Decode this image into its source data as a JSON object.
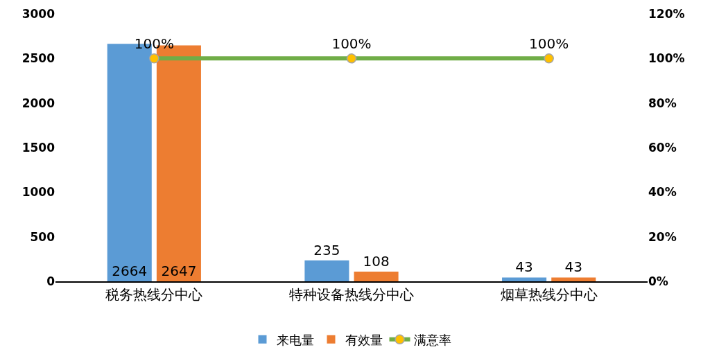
{
  "chart_data": {
    "type": "bar",
    "categories": [
      "税务热线分中心",
      "特种设备热线分中心",
      "烟草热线分中心"
    ],
    "series": [
      {
        "name": "来电量",
        "color": "#5b9bd5",
        "values": [
          2664,
          235,
          43
        ],
        "value_labels": [
          "2664",
          "235",
          "43"
        ]
      },
      {
        "name": "有效量",
        "color": "#ed7d31",
        "values": [
          2647,
          108,
          43
        ],
        "value_labels": [
          "2647",
          "108",
          "43"
        ]
      },
      {
        "name": "满意率",
        "type": "line",
        "axis": "y2",
        "color": "#70ad47",
        "colors": [
          "#ffc000",
          "#ffc000",
          "#ffc000"
        ],
        "marker": "circle",
        "values": [
          100,
          100,
          100
        ],
        "value_labels": [
          "100%",
          "100%",
          "100%"
        ]
      }
    ],
    "ylim": [
      0,
      3000
    ],
    "yticks": [
      0,
      500,
      1000,
      1500,
      2000,
      2500,
      3000
    ],
    "y2lim": [
      0,
      120
    ],
    "y2ticks": [
      {
        "value": 0,
        "label": "0%"
      },
      {
        "value": 20,
        "label": "20%"
      },
      {
        "value": 40,
        "label": "40%"
      },
      {
        "value": 60,
        "label": "60%"
      },
      {
        "value": 80,
        "label": "80%"
      },
      {
        "value": 100,
        "label": "100%"
      },
      {
        "value": 120,
        "label": "120%"
      }
    ],
    "grid": false,
    "legend": "bottom"
  }
}
